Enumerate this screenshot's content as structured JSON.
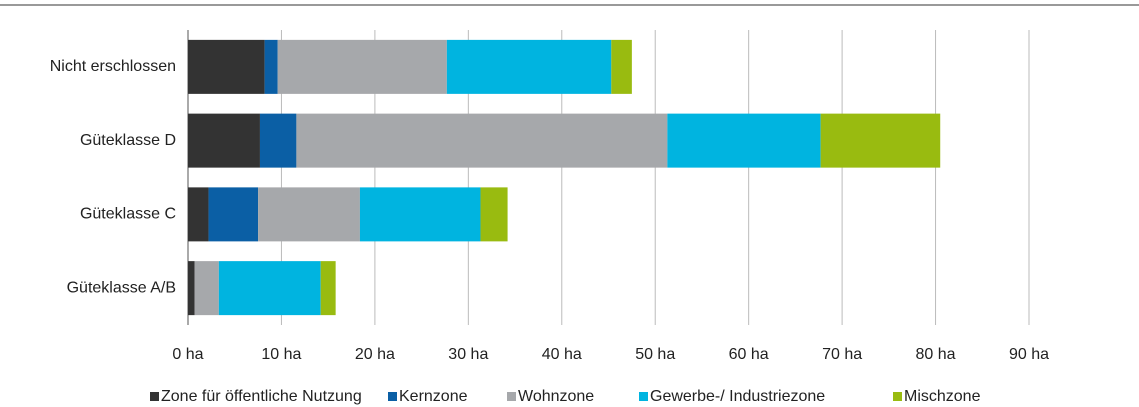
{
  "chart_data": {
    "type": "stacked-bar-horizontal",
    "categories": [
      "Nicht erschlossen",
      "Güteklasse D",
      "Güteklasse C",
      "Güteklasse A/B"
    ],
    "series": [
      {
        "name": "Zone für öffentliche Nutzung",
        "color": "#333333",
        "values": [
          8.2,
          7.7,
          2.2,
          0.7
        ]
      },
      {
        "name": "Kernzone",
        "color": "#0b5fa5",
        "values": [
          1.4,
          3.9,
          5.3,
          0
        ]
      },
      {
        "name": "Wohnzone",
        "color": "#a6a8ab",
        "values": [
          18.1,
          39.7,
          10.9,
          2.6
        ]
      },
      {
        "name": "Gewerbe-/ Industriezone",
        "color": "#00b4e0",
        "values": [
          17.6,
          16.4,
          12.9,
          10.9
        ]
      },
      {
        "name": "Mischzone",
        "color": "#99bb10",
        "values": [
          2.2,
          12.8,
          2.9,
          1.6
        ]
      }
    ],
    "xlim": [
      0,
      90
    ],
    "xticks": [
      {
        "value": 0,
        "label": "0 ha"
      },
      {
        "value": 10,
        "label": "10 ha"
      },
      {
        "value": 20,
        "label": "20 ha"
      },
      {
        "value": 30,
        "label": "30 ha"
      },
      {
        "value": 40,
        "label": "40 ha"
      },
      {
        "value": 50,
        "label": "50 ha"
      },
      {
        "value": 60,
        "label": "60 ha"
      },
      {
        "value": 70,
        "label": "70 ha"
      },
      {
        "value": 80,
        "label": "80 ha"
      },
      {
        "value": 90,
        "label": "90 ha"
      }
    ],
    "grid": true,
    "legend": "bottom"
  }
}
